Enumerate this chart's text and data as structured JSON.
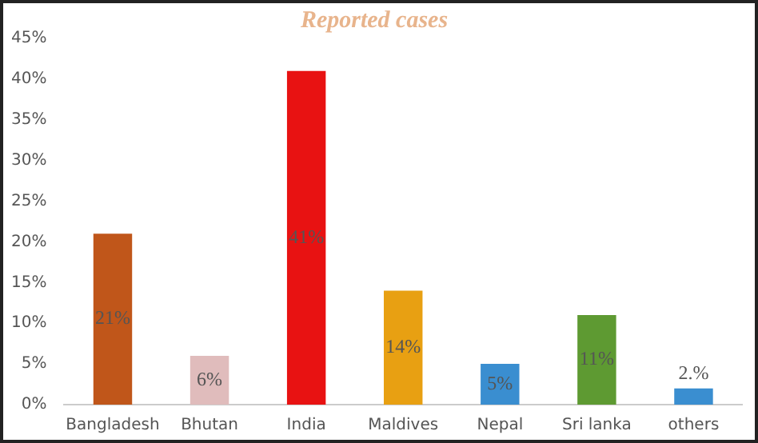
{
  "chart_data": {
    "type": "bar",
    "title": "Reported cases",
    "categories": [
      "Bangladesh",
      "Bhutan",
      "India",
      "Maldives",
      "Nepal",
      "Sri lanka",
      "others"
    ],
    "values": [
      21,
      6,
      41,
      14,
      5,
      11,
      2
    ],
    "value_labels": [
      "21%",
      "6%",
      "41%",
      "14%",
      "5%",
      "11%",
      "2.%"
    ],
    "colors": [
      "#c0561a",
      "#e0bcbc",
      "#e81212",
      "#e8a012",
      "#3a8ed0",
      "#5e9a32",
      "#3a8ed0"
    ],
    "ylim": [
      0,
      45
    ],
    "yticks": [
      {
        "value": 0,
        "label": "0%"
      },
      {
        "value": 5,
        "label": "5%"
      },
      {
        "value": 10,
        "label": "10%"
      },
      {
        "value": 15,
        "label": "15%"
      },
      {
        "value": 20,
        "label": "20%"
      },
      {
        "value": 25,
        "label": "25%"
      },
      {
        "value": 30,
        "label": "30%"
      },
      {
        "value": 35,
        "label": "35%"
      },
      {
        "value": 40,
        "label": "40%"
      },
      {
        "value": 45,
        "label": "45%"
      }
    ],
    "grid": false,
    "legend": false
  }
}
